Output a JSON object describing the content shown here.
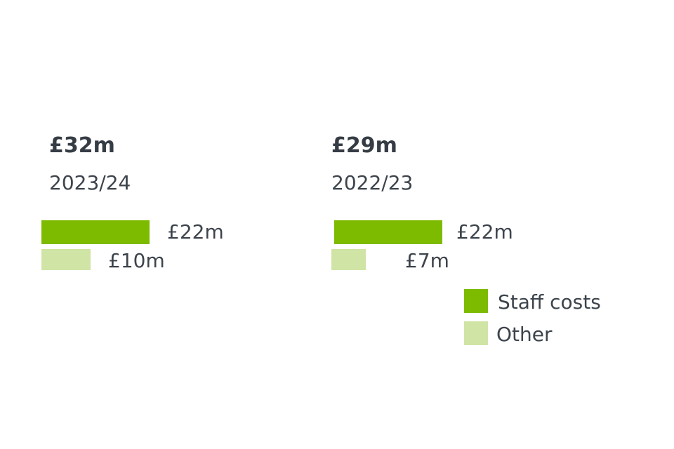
{
  "chart_data": {
    "type": "bar",
    "orientation": "horizontal",
    "series": [
      {
        "name": "Staff costs",
        "color": "#7dbb00"
      },
      {
        "name": "Other",
        "color": "#d0e4a5"
      }
    ],
    "groups": [
      {
        "year": "2023/24",
        "total_label": "£32m",
        "total": 32,
        "values": [
          22,
          10
        ],
        "value_labels": [
          "£22m",
          "£10m"
        ]
      },
      {
        "year": "2022/23",
        "total_label": "£29m",
        "total": 29,
        "values": [
          22,
          7
        ],
        "value_labels": [
          "£22m",
          "£7m"
        ]
      }
    ],
    "legend": {
      "position": "bottom-right",
      "items": [
        "Staff costs",
        "Other"
      ]
    },
    "grid": false
  }
}
